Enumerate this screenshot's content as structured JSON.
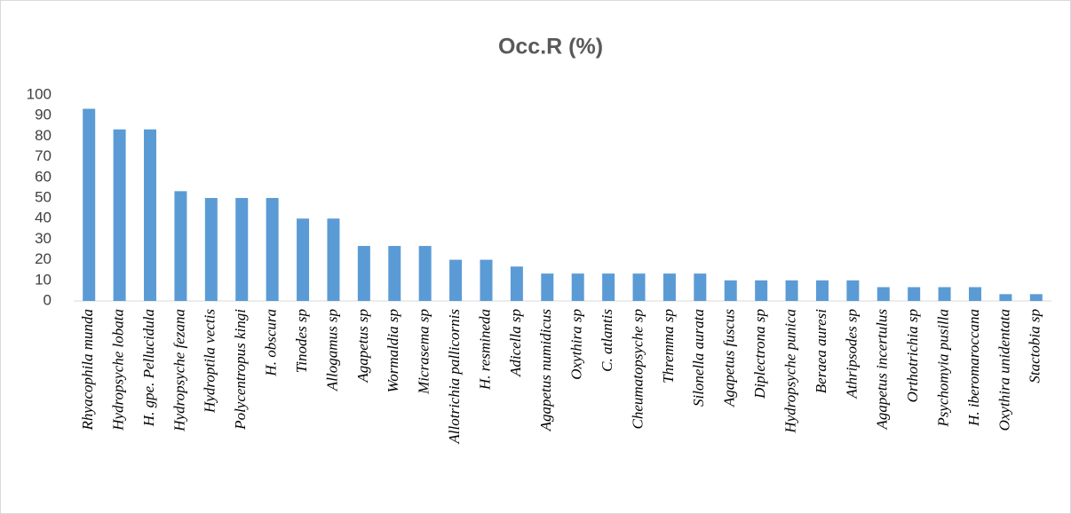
{
  "chart_data": {
    "type": "bar",
    "title": "Occ.R (%)",
    "categories": [
      "Rhyacophila munda",
      "Hydropsyche lobata",
      "H.  gpe. Pellucidula",
      "Hydropsyche fezana",
      "Hydroptila vectis",
      "Polycentropus kingi",
      "H. obscura",
      "Tinodes sp",
      "Allogamus sp",
      "Agapetus sp",
      "Wormaldia sp",
      "Micrasema sp",
      "Allotrichia pallicornis",
      "H. resmineda",
      "Adicella sp",
      "Agapetus numidicus",
      "Oxythira sp",
      "C.  atlantis",
      "Cheumatopsyche sp",
      "Thremma sp",
      "Silonella aurata",
      "Agapetus fuscus",
      "Diplectrona sp",
      "Hydropsyche punica",
      "Beraea auresi",
      "Athripsodes sp",
      "Agapetus incertulus",
      "Orthotrichia sp",
      "Psychomyia pusilla",
      "H. iberomaroccana",
      "Oxythira unidentata",
      "Stactobia sp"
    ],
    "values": [
      93.3,
      83.3,
      83.3,
      53.3,
      50,
      50,
      50,
      40,
      40,
      26.7,
      26.7,
      26.7,
      20,
      20,
      16.7,
      13.3,
      13.3,
      13.3,
      13.3,
      13.3,
      13.3,
      10,
      10,
      10,
      10,
      10,
      6.7,
      6.7,
      6.7,
      6.7,
      3.3,
      3.3
    ],
    "color": "#5b9bd5",
    "ylim": [
      0,
      100
    ],
    "yticks": [
      0,
      10,
      20,
      30,
      40,
      50,
      60,
      70,
      80,
      90,
      100
    ],
    "grid": false
  }
}
